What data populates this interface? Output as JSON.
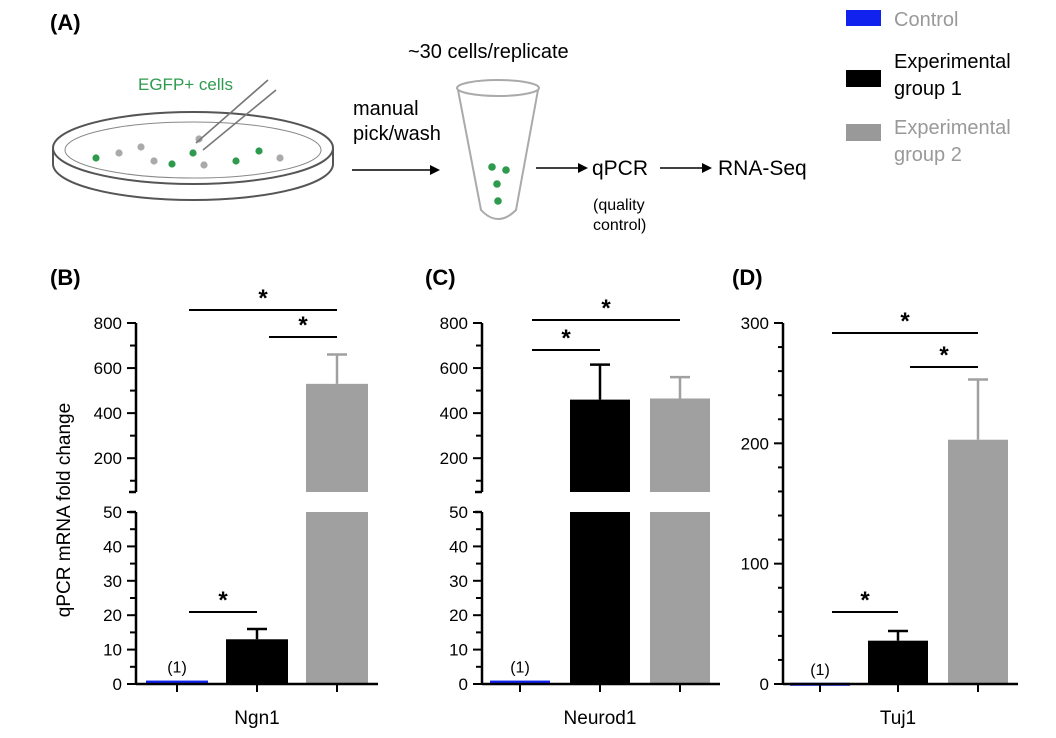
{
  "panel_labels": {
    "a": "(A)",
    "b": "(B)",
    "c": "(C)",
    "d": "(D)"
  },
  "schematic": {
    "egfp_label": "EGFP+ cells",
    "cells_per_replicate": "~30 cells/replicate",
    "step_manual_1": "manual",
    "step_manual_2": "pick/wash",
    "step_qpcr": "qPCR",
    "step_rnaseq": "RNA-Seq",
    "qc_1": "(quality",
    "qc_2": "control)"
  },
  "legend": [
    {
      "label_lines": [
        "Control"
      ],
      "color": "#1122ee"
    },
    {
      "label_lines": [
        "Experimental",
        "group 1"
      ],
      "color": "#000000"
    },
    {
      "label_lines": [
        "Experimental",
        "group 2"
      ],
      "color": "#999999"
    }
  ],
  "colors": {
    "control": "#1122ee",
    "group1": "#000000",
    "group2": "#a0a0a0",
    "egfp_green": "#2e9a4e",
    "grey_cell": "#aaaaaa"
  },
  "y_axis_label": "qPCR mRNA fold change",
  "chart_data": [
    {
      "panel": "(B)",
      "type": "bar",
      "xlabel": "Ngn1",
      "ylabel": "qPCR mRNA fold change",
      "axis_break": true,
      "ylim_lower": [
        0,
        50
      ],
      "ylim_upper": [
        50,
        800
      ],
      "yticks_lower": [
        0,
        10,
        20,
        30,
        40,
        50
      ],
      "yticks_upper": [
        200,
        400,
        600,
        800
      ],
      "categories": [
        "Control",
        "Experimental group 1",
        "Experimental group 2"
      ],
      "values": [
        1,
        13,
        530
      ],
      "errors": [
        0,
        3,
        130
      ],
      "bar_annotations": [
        "(1)",
        "",
        ""
      ],
      "significance": [
        {
          "from": 0,
          "to": 1,
          "label": "*"
        },
        {
          "from": 1,
          "to": 2,
          "label": "*"
        },
        {
          "from": 0,
          "to": 2,
          "label": "*"
        }
      ]
    },
    {
      "panel": "(C)",
      "type": "bar",
      "xlabel": "Neurod1",
      "ylabel": "",
      "axis_break": true,
      "ylim_lower": [
        0,
        50
      ],
      "ylim_upper": [
        50,
        800
      ],
      "yticks_lower": [
        0,
        10,
        20,
        30,
        40,
        50
      ],
      "yticks_upper": [
        200,
        400,
        600,
        800
      ],
      "categories": [
        "Control",
        "Experimental group 1",
        "Experimental group 2"
      ],
      "values": [
        1,
        460,
        465
      ],
      "errors": [
        0,
        155,
        95
      ],
      "bar_annotations": [
        "(1)",
        "",
        ""
      ],
      "significance": [
        {
          "from": 0,
          "to": 1,
          "label": "*"
        },
        {
          "from": 0,
          "to": 2,
          "label": "*"
        }
      ]
    },
    {
      "panel": "(D)",
      "type": "bar",
      "xlabel": "Tuj1",
      "ylabel": "",
      "axis_break": false,
      "ylim": [
        0,
        300
      ],
      "yticks": [
        0,
        100,
        200,
        300
      ],
      "categories": [
        "Control",
        "Experimental group 1",
        "Experimental group 2"
      ],
      "values": [
        1,
        36,
        203
      ],
      "errors": [
        0,
        8,
        50
      ],
      "bar_annotations": [
        "(1)",
        "",
        ""
      ],
      "significance": [
        {
          "from": 0,
          "to": 1,
          "label": "*"
        },
        {
          "from": 1,
          "to": 2,
          "label": "*"
        },
        {
          "from": 0,
          "to": 2,
          "label": "*"
        }
      ]
    }
  ]
}
